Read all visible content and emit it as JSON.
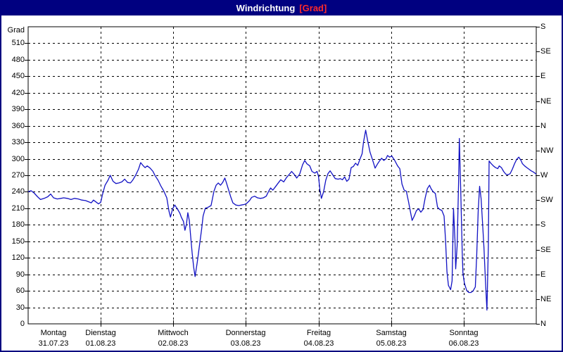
{
  "window": {
    "title_main": "Windrichtung",
    "title_unit": "[Grad]",
    "colors": {
      "titlebar_bg": "#000080",
      "title_main": "#FFFFFF",
      "title_unit": "#FF2A2A",
      "window_border": "#000080",
      "plot_border": "#000000",
      "grid": "#000000",
      "text": "#000000",
      "line": "#1212C4",
      "background": "#FFFFFF"
    }
  },
  "chart_data": {
    "type": "line",
    "title": "Windrichtung [Grad]",
    "ylabel": "Grad",
    "ylim": [
      0,
      540
    ],
    "y_tick_step": 30,
    "y_tick_labels": [
      "0",
      "30",
      "60",
      "90",
      "120",
      "150",
      "180",
      "210",
      "240",
      "270",
      "300",
      "330",
      "360",
      "390",
      "420",
      "450",
      "480",
      "510"
    ],
    "grid": "dashed horizontal every 30 deg, dashed vertical at each day start",
    "legend": "none",
    "x_axis": {
      "unit": "days",
      "range_days": [
        0,
        7
      ],
      "ticks": [
        {
          "name": "Montag",
          "date": "31.07.23"
        },
        {
          "name": "Dienstag",
          "date": "01.08.23"
        },
        {
          "name": "Mittwoch",
          "date": "02.08.23"
        },
        {
          "name": "Donnerstag",
          "date": "03.08.23"
        },
        {
          "name": "Freitag",
          "date": "04.08.23"
        },
        {
          "name": "Samstag",
          "date": "05.08.23"
        },
        {
          "name": "Sonntag",
          "date": "06.08.23"
        }
      ]
    },
    "right_axis": {
      "meaning": "compass direction",
      "ticks": [
        {
          "deg": 0,
          "label": "N"
        },
        {
          "deg": 45,
          "label": "NE"
        },
        {
          "deg": 90,
          "label": "E"
        },
        {
          "deg": 135,
          "label": "SE"
        },
        {
          "deg": 180,
          "label": "S"
        },
        {
          "deg": 225,
          "label": "SW"
        },
        {
          "deg": 270,
          "label": "W"
        },
        {
          "deg": 315,
          "label": "NW"
        },
        {
          "deg": 360,
          "label": "N"
        },
        {
          "deg": 405,
          "label": "NE"
        },
        {
          "deg": 450,
          "label": "E"
        },
        {
          "deg": 495,
          "label": "SE"
        },
        {
          "deg": 540,
          "label": "S"
        }
      ]
    },
    "series": [
      {
        "name": "Windrichtung",
        "color": "#1212C4",
        "x_unit": "days since Montag 31.07.23 00:00",
        "y_unit": "Grad",
        "points": [
          [
            0.0,
            240
          ],
          [
            0.04,
            242
          ],
          [
            0.08,
            238
          ],
          [
            0.13,
            231
          ],
          [
            0.17,
            226
          ],
          [
            0.22,
            228
          ],
          [
            0.27,
            231
          ],
          [
            0.31,
            236
          ],
          [
            0.35,
            229
          ],
          [
            0.4,
            227
          ],
          [
            0.45,
            228
          ],
          [
            0.49,
            229
          ],
          [
            0.54,
            228
          ],
          [
            0.59,
            226
          ],
          [
            0.64,
            228
          ],
          [
            0.69,
            227
          ],
          [
            0.74,
            225
          ],
          [
            0.79,
            224
          ],
          [
            0.83,
            222
          ],
          [
            0.87,
            220
          ],
          [
            0.9,
            225
          ],
          [
            0.94,
            221
          ],
          [
            0.97,
            218
          ],
          [
            1.0,
            221
          ],
          [
            1.03,
            238
          ],
          [
            1.06,
            252
          ],
          [
            1.1,
            261
          ],
          [
            1.13,
            270
          ],
          [
            1.17,
            259
          ],
          [
            1.21,
            255
          ],
          [
            1.25,
            256
          ],
          [
            1.29,
            258
          ],
          [
            1.33,
            263
          ],
          [
            1.37,
            257
          ],
          [
            1.41,
            256
          ],
          [
            1.44,
            261
          ],
          [
            1.48,
            270
          ],
          [
            1.52,
            281
          ],
          [
            1.55,
            293
          ],
          [
            1.58,
            288
          ],
          [
            1.61,
            284
          ],
          [
            1.64,
            287
          ],
          [
            1.68,
            283
          ],
          [
            1.72,
            277
          ],
          [
            1.75,
            269
          ],
          [
            1.79,
            261
          ],
          [
            1.83,
            250
          ],
          [
            1.87,
            241
          ],
          [
            1.91,
            229
          ],
          [
            1.94,
            205
          ],
          [
            1.96,
            194
          ],
          [
            1.99,
            209
          ],
          [
            2.02,
            216
          ],
          [
            2.06,
            208
          ],
          [
            2.09,
            201
          ],
          [
            2.11,
            194
          ],
          [
            2.14,
            186
          ],
          [
            2.16,
            170
          ],
          [
            2.18,
            181
          ],
          [
            2.2,
            202
          ],
          [
            2.22,
            188
          ],
          [
            2.24,
            158
          ],
          [
            2.26,
            128
          ],
          [
            2.28,
            103
          ],
          [
            2.3,
            86
          ],
          [
            2.33,
            112
          ],
          [
            2.36,
            142
          ],
          [
            2.39,
            172
          ],
          [
            2.41,
            196
          ],
          [
            2.44,
            210
          ],
          [
            2.48,
            212
          ],
          [
            2.52,
            215
          ],
          [
            2.56,
            241
          ],
          [
            2.59,
            252
          ],
          [
            2.62,
            256
          ],
          [
            2.65,
            252
          ],
          [
            2.68,
            257
          ],
          [
            2.71,
            265
          ],
          [
            2.73,
            257
          ],
          [
            2.76,
            244
          ],
          [
            2.79,
            231
          ],
          [
            2.82,
            220
          ],
          [
            2.86,
            216
          ],
          [
            2.9,
            215
          ],
          [
            2.94,
            216
          ],
          [
            2.98,
            217
          ],
          [
            3.01,
            219
          ],
          [
            3.05,
            224
          ],
          [
            3.08,
            230
          ],
          [
            3.12,
            232
          ],
          [
            3.16,
            229
          ],
          [
            3.2,
            228
          ],
          [
            3.24,
            229
          ],
          [
            3.28,
            232
          ],
          [
            3.31,
            240
          ],
          [
            3.34,
            247
          ],
          [
            3.37,
            243
          ],
          [
            3.4,
            248
          ],
          [
            3.44,
            255
          ],
          [
            3.48,
            262
          ],
          [
            3.52,
            258
          ],
          [
            3.56,
            266
          ],
          [
            3.6,
            272
          ],
          [
            3.63,
            277
          ],
          [
            3.67,
            271
          ],
          [
            3.7,
            265
          ],
          [
            3.74,
            272
          ],
          [
            3.78,
            289
          ],
          [
            3.81,
            297
          ],
          [
            3.84,
            291
          ],
          [
            3.88,
            287
          ],
          [
            3.91,
            277
          ],
          [
            3.95,
            274
          ],
          [
            3.98,
            277
          ],
          [
            4.0,
            268
          ],
          [
            4.02,
            243
          ],
          [
            4.04,
            228
          ],
          [
            4.07,
            240
          ],
          [
            4.1,
            261
          ],
          [
            4.13,
            273
          ],
          [
            4.16,
            278
          ],
          [
            4.19,
            272
          ],
          [
            4.23,
            264
          ],
          [
            4.27,
            263
          ],
          [
            4.3,
            264
          ],
          [
            4.33,
            262
          ],
          [
            4.36,
            267
          ],
          [
            4.39,
            259
          ],
          [
            4.42,
            263
          ],
          [
            4.45,
            284
          ],
          [
            4.48,
            286
          ],
          [
            4.51,
            292
          ],
          [
            4.54,
            288
          ],
          [
            4.57,
            299
          ],
          [
            4.6,
            309
          ],
          [
            4.62,
            330
          ],
          [
            4.65,
            352
          ],
          [
            4.68,
            331
          ],
          [
            4.71,
            312
          ],
          [
            4.74,
            300
          ],
          [
            4.78,
            283
          ],
          [
            4.81,
            290
          ],
          [
            4.84,
            296
          ],
          [
            4.87,
            301
          ],
          [
            4.9,
            297
          ],
          [
            4.93,
            300
          ],
          [
            4.95,
            306
          ],
          [
            4.98,
            303
          ],
          [
            5.01,
            305
          ],
          [
            5.05,
            297
          ],
          [
            5.09,
            287
          ],
          [
            5.12,
            282
          ],
          [
            5.15,
            254
          ],
          [
            5.18,
            243
          ],
          [
            5.21,
            241
          ],
          [
            5.24,
            222
          ],
          [
            5.27,
            201
          ],
          [
            5.29,
            188
          ],
          [
            5.32,
            196
          ],
          [
            5.35,
            206
          ],
          [
            5.38,
            209
          ],
          [
            5.41,
            203
          ],
          [
            5.44,
            208
          ],
          [
            5.47,
            229
          ],
          [
            5.5,
            246
          ],
          [
            5.53,
            252
          ],
          [
            5.55,
            246
          ],
          [
            5.58,
            240
          ],
          [
            5.61,
            237
          ],
          [
            5.64,
            212
          ],
          [
            5.67,
            208
          ],
          [
            5.7,
            206
          ],
          [
            5.73,
            196
          ],
          [
            5.75,
            152
          ],
          [
            5.77,
            95
          ],
          [
            5.79,
            70
          ],
          [
            5.82,
            62
          ],
          [
            5.84,
            78
          ],
          [
            5.86,
            210
          ],
          [
            5.88,
            152
          ],
          [
            5.89,
            100
          ],
          [
            5.91,
            142
          ],
          [
            5.93,
            255
          ],
          [
            5.94,
            337
          ],
          [
            5.96,
            242
          ],
          [
            5.98,
            130
          ],
          [
            5.99,
            92
          ],
          [
            6.01,
            74
          ],
          [
            6.04,
            61
          ],
          [
            6.07,
            57
          ],
          [
            6.1,
            57
          ],
          [
            6.13,
            60
          ],
          [
            6.16,
            67
          ],
          [
            6.18,
            125
          ],
          [
            6.2,
            205
          ],
          [
            6.22,
            250
          ],
          [
            6.24,
            228
          ],
          [
            6.26,
            183
          ],
          [
            6.28,
            138
          ],
          [
            6.3,
            78
          ],
          [
            6.32,
            25
          ],
          [
            6.34,
            140
          ],
          [
            6.35,
            296
          ],
          [
            6.38,
            291
          ],
          [
            6.41,
            287
          ],
          [
            6.44,
            284
          ],
          [
            6.47,
            282
          ],
          [
            6.49,
            287
          ],
          [
            6.52,
            284
          ],
          [
            6.55,
            277
          ],
          [
            6.58,
            272
          ],
          [
            6.61,
            271
          ],
          [
            6.64,
            273
          ],
          [
            6.67,
            281
          ],
          [
            6.7,
            291
          ],
          [
            6.73,
            299
          ],
          [
            6.76,
            303
          ],
          [
            6.79,
            297
          ],
          [
            6.81,
            291
          ],
          [
            6.84,
            287
          ],
          [
            6.87,
            284
          ],
          [
            6.9,
            281
          ],
          [
            6.93,
            278
          ],
          [
            6.96,
            276
          ],
          [
            7.0,
            272
          ]
        ]
      }
    ]
  }
}
